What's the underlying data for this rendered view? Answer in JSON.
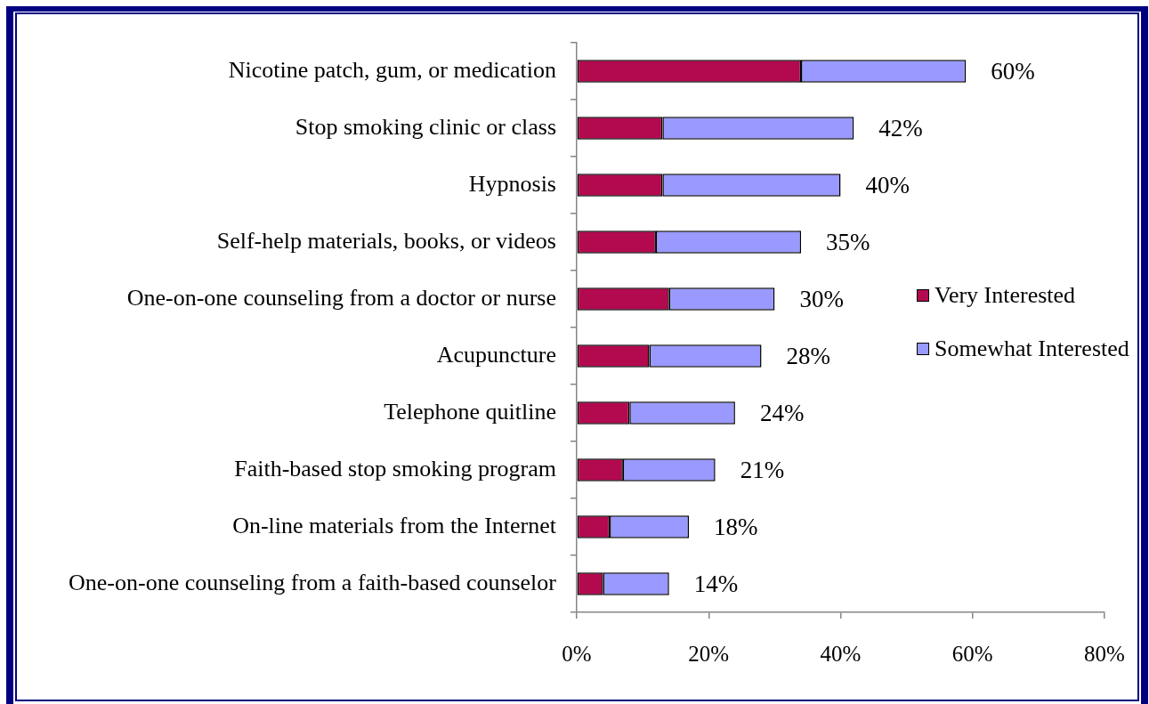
{
  "chart_data": {
    "type": "bar",
    "orientation": "horizontal",
    "stacked": true,
    "categories": [
      "Nicotine patch, gum, or medication",
      "Stop smoking clinic or class",
      "Hypnosis",
      "Self-help materials, books, or videos",
      "One-on-one counseling from a doctor or nurse",
      "Acupuncture",
      "Telephone quitline",
      "Faith-based stop smoking program",
      "On-line materials from the Internet",
      "One-on-one counseling from a faith-based counselor"
    ],
    "series": [
      {
        "name": "Very Interested",
        "color": "#b2094f",
        "values": [
          34,
          13,
          13,
          12,
          14,
          11,
          8,
          7,
          5,
          4
        ]
      },
      {
        "name": "Somewhat Interested",
        "color": "#9999ff",
        "values": [
          25,
          29,
          27,
          22,
          16,
          17,
          16,
          14,
          12,
          10
        ]
      }
    ],
    "totals": [
      "60%",
      "42%",
      "40%",
      "35%",
      "30%",
      "28%",
      "24%",
      "21%",
      "18%",
      "14%"
    ],
    "xlim": [
      0,
      80
    ],
    "xticks": [
      {
        "value": 0,
        "label": "0%"
      },
      {
        "value": 20,
        "label": "20%"
      },
      {
        "value": 40,
        "label": "40%"
      },
      {
        "value": 60,
        "label": "60%"
      },
      {
        "value": 80,
        "label": "80%"
      }
    ],
    "legend": "right"
  }
}
